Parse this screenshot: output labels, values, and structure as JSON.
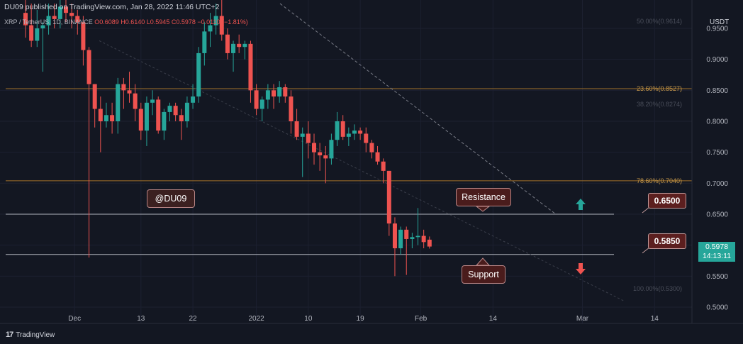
{
  "header": {
    "published": "DU09 published on TradingView.com, Jan 28, 2022 11:46 UTC+2",
    "symbol": "XRP / TetherUS, 1D, BINANCE",
    "ohlc": "O0.6089 H0.6140 L0.5945 C0.5978 −0.0110 (−1.81%)",
    "currency": "USDT"
  },
  "branding": {
    "logo_text": "TradingView"
  },
  "annotations": {
    "watermark": "@DU09",
    "resistance_label": "Resistance",
    "support_label": "Support",
    "resistance_price": "0.6500",
    "support_price": "0.5850"
  },
  "current_price": {
    "price": "0.5978",
    "countdown": "14:13:11",
    "color": "#26a69a"
  },
  "colors": {
    "up": "#26a69a",
    "down": "#ef5350",
    "fib_line": "#a0702a",
    "level_line": "#b2b5be",
    "background": "#131722"
  },
  "chart_data": {
    "type": "candlestick",
    "y_axis": {
      "ticks": [
        "0.9500",
        "0.9000",
        "0.8500",
        "0.8000",
        "0.7500",
        "0.7000",
        "0.6500",
        "0.6000",
        "0.5500",
        "0.5000"
      ],
      "ylim": [
        0.5,
        0.955
      ],
      "scale": "linear"
    },
    "x_axis": {
      "ticks": [
        "Dec",
        "13",
        "22",
        "2022",
        "10",
        "19",
        "Feb",
        "14",
        "Mar",
        "14"
      ]
    },
    "fib_levels": [
      {
        "label": "50.00%(0.9614)",
        "value": 0.9614,
        "faint": true
      },
      {
        "label": "23.60%(0.8527)",
        "value": 0.8527,
        "faint": false
      },
      {
        "label": "38.20%(0.8274)",
        "value": 0.8274,
        "faint": true
      },
      {
        "label": "78.60%(0.7040)",
        "value": 0.704,
        "faint": false
      },
      {
        "label": "100.00%(0.5300)",
        "value": 0.53,
        "faint": true
      }
    ],
    "horizontal_levels": [
      0.65,
      0.585
    ],
    "trendline": {
      "from": {
        "x": "Jan 5",
        "y": 0.99
      },
      "to": {
        "x": "Feb 21",
        "y": 0.65
      }
    },
    "candles": [
      {
        "date": "Nov 23",
        "open": 0.975,
        "high": 1.0,
        "low": 0.935,
        "close": 0.955
      },
      {
        "date": "Nov 24",
        "open": 0.955,
        "high": 0.99,
        "low": 0.92,
        "close": 0.93
      },
      {
        "date": "Nov 25",
        "open": 0.93,
        "high": 0.98,
        "low": 0.92,
        "close": 0.95
      },
      {
        "date": "Nov 26",
        "open": 0.95,
        "high": 0.96,
        "low": 0.88,
        "close": 0.955
      },
      {
        "date": "Nov 27",
        "open": 0.955,
        "high": 0.99,
        "low": 0.94,
        "close": 0.97
      },
      {
        "date": "Nov 28",
        "open": 0.97,
        "high": 0.99,
        "low": 0.95,
        "close": 0.965
      },
      {
        "date": "Nov 29",
        "open": 0.965,
        "high": 1.0,
        "low": 0.95,
        "close": 0.985
      },
      {
        "date": "Nov 30",
        "open": 0.985,
        "high": 1.0,
        "low": 0.96,
        "close": 0.975
      },
      {
        "date": "Dec 1",
        "open": 0.975,
        "high": 0.99,
        "low": 0.95,
        "close": 0.97
      },
      {
        "date": "Dec 2",
        "open": 0.97,
        "high": 0.98,
        "low": 0.94,
        "close": 0.96
      },
      {
        "date": "Dec 3",
        "open": 0.96,
        "high": 0.97,
        "low": 0.89,
        "close": 0.915
      },
      {
        "date": "Dec 4",
        "open": 0.915,
        "high": 0.92,
        "low": 0.58,
        "close": 0.86
      },
      {
        "date": "Dec 5",
        "open": 0.86,
        "high": 0.86,
        "low": 0.79,
        "close": 0.82
      },
      {
        "date": "Dec 6",
        "open": 0.82,
        "high": 0.84,
        "low": 0.75,
        "close": 0.8
      },
      {
        "date": "Dec 7",
        "open": 0.8,
        "high": 0.83,
        "low": 0.79,
        "close": 0.81
      },
      {
        "date": "Dec 8",
        "open": 0.81,
        "high": 0.83,
        "low": 0.78,
        "close": 0.8
      },
      {
        "date": "Dec 9",
        "open": 0.8,
        "high": 0.87,
        "low": 0.78,
        "close": 0.86
      },
      {
        "date": "Dec 10",
        "open": 0.86,
        "high": 0.87,
        "low": 0.82,
        "close": 0.85
      },
      {
        "date": "Dec 11",
        "open": 0.85,
        "high": 0.88,
        "low": 0.83,
        "close": 0.845
      },
      {
        "date": "Dec 12",
        "open": 0.845,
        "high": 0.86,
        "low": 0.8,
        "close": 0.82
      },
      {
        "date": "Dec 13",
        "open": 0.82,
        "high": 0.83,
        "low": 0.77,
        "close": 0.785
      },
      {
        "date": "Dec 14",
        "open": 0.785,
        "high": 0.84,
        "low": 0.76,
        "close": 0.83
      },
      {
        "date": "Dec 15",
        "open": 0.83,
        "high": 0.85,
        "low": 0.81,
        "close": 0.835
      },
      {
        "date": "Dec 16",
        "open": 0.835,
        "high": 0.84,
        "low": 0.78,
        "close": 0.785
      },
      {
        "date": "Dec 17",
        "open": 0.785,
        "high": 0.82,
        "low": 0.77,
        "close": 0.815
      },
      {
        "date": "Dec 18",
        "open": 0.815,
        "high": 0.83,
        "low": 0.8,
        "close": 0.825
      },
      {
        "date": "Dec 19",
        "open": 0.825,
        "high": 0.83,
        "low": 0.8,
        "close": 0.81
      },
      {
        "date": "Dec 20",
        "open": 0.81,
        "high": 0.82,
        "low": 0.77,
        "close": 0.8
      },
      {
        "date": "Dec 21",
        "open": 0.8,
        "high": 0.84,
        "low": 0.79,
        "close": 0.83
      },
      {
        "date": "Dec 22",
        "open": 0.83,
        "high": 0.86,
        "low": 0.82,
        "close": 0.84
      },
      {
        "date": "Dec 23",
        "open": 0.84,
        "high": 0.92,
        "low": 0.83,
        "close": 0.91
      },
      {
        "date": "Dec 24",
        "open": 0.91,
        "high": 0.96,
        "low": 0.89,
        "close": 0.945
      },
      {
        "date": "Dec 25",
        "open": 0.945,
        "high": 0.975,
        "low": 0.92,
        "close": 0.955
      },
      {
        "date": "Dec 26",
        "open": 0.955,
        "high": 0.99,
        "low": 0.94,
        "close": 0.97
      },
      {
        "date": "Dec 27",
        "open": 0.97,
        "high": 1.0,
        "low": 0.93,
        "close": 0.94
      },
      {
        "date": "Dec 28",
        "open": 0.94,
        "high": 0.95,
        "low": 0.9,
        "close": 0.91
      },
      {
        "date": "Dec 29",
        "open": 0.91,
        "high": 0.93,
        "low": 0.88,
        "close": 0.925
      },
      {
        "date": "Dec 30",
        "open": 0.925,
        "high": 0.94,
        "low": 0.91,
        "close": 0.92
      },
      {
        "date": "Dec 31",
        "open": 0.92,
        "high": 0.93,
        "low": 0.9,
        "close": 0.925
      },
      {
        "date": "Jan 1",
        "open": 0.925,
        "high": 0.93,
        "low": 0.83,
        "close": 0.85
      },
      {
        "date": "Jan 2",
        "open": 0.85,
        "high": 0.86,
        "low": 0.81,
        "close": 0.82
      },
      {
        "date": "Jan 3",
        "open": 0.82,
        "high": 0.84,
        "low": 0.8,
        "close": 0.835
      },
      {
        "date": "Jan 4",
        "open": 0.835,
        "high": 0.86,
        "low": 0.82,
        "close": 0.85
      },
      {
        "date": "Jan 5",
        "open": 0.85,
        "high": 0.86,
        "low": 0.82,
        "close": 0.84
      },
      {
        "date": "Jan 6",
        "open": 0.84,
        "high": 0.865,
        "low": 0.83,
        "close": 0.855
      },
      {
        "date": "Jan 7",
        "open": 0.855,
        "high": 0.86,
        "low": 0.83,
        "close": 0.84
      },
      {
        "date": "Jan 8",
        "open": 0.84,
        "high": 0.85,
        "low": 0.78,
        "close": 0.8
      },
      {
        "date": "Jan 9",
        "open": 0.8,
        "high": 0.82,
        "low": 0.77,
        "close": 0.775
      },
      {
        "date": "Jan 10",
        "open": 0.775,
        "high": 0.79,
        "low": 0.71,
        "close": 0.78
      },
      {
        "date": "Jan 11",
        "open": 0.78,
        "high": 0.8,
        "low": 0.74,
        "close": 0.765
      },
      {
        "date": "Jan 12",
        "open": 0.765,
        "high": 0.78,
        "low": 0.73,
        "close": 0.75
      },
      {
        "date": "Jan 13",
        "open": 0.75,
        "high": 0.765,
        "low": 0.72,
        "close": 0.745
      },
      {
        "date": "Jan 14",
        "open": 0.745,
        "high": 0.76,
        "low": 0.7,
        "close": 0.74
      },
      {
        "date": "Jan 15",
        "open": 0.74,
        "high": 0.78,
        "low": 0.73,
        "close": 0.77
      },
      {
        "date": "Jan 16",
        "open": 0.77,
        "high": 0.815,
        "low": 0.76,
        "close": 0.8
      },
      {
        "date": "Jan 17",
        "open": 0.8,
        "high": 0.81,
        "low": 0.77,
        "close": 0.775
      },
      {
        "date": "Jan 18",
        "open": 0.775,
        "high": 0.79,
        "low": 0.76,
        "close": 0.78
      },
      {
        "date": "Jan 19",
        "open": 0.78,
        "high": 0.795,
        "low": 0.77,
        "close": 0.785
      },
      {
        "date": "Jan 20",
        "open": 0.785,
        "high": 0.79,
        "low": 0.77,
        "close": 0.78
      },
      {
        "date": "Jan 21",
        "open": 0.78,
        "high": 0.79,
        "low": 0.75,
        "close": 0.765
      },
      {
        "date": "Jan 22",
        "open": 0.765,
        "high": 0.77,
        "low": 0.74,
        "close": 0.75
      },
      {
        "date": "Jan 23",
        "open": 0.75,
        "high": 0.76,
        "low": 0.73,
        "close": 0.735
      },
      {
        "date": "Jan 24",
        "open": 0.735,
        "high": 0.74,
        "low": 0.7,
        "close": 0.72
      },
      {
        "date": "Jan 25",
        "open": 0.72,
        "high": 0.72,
        "low": 0.615,
        "close": 0.635
      },
      {
        "date": "Jan 26",
        "open": 0.635,
        "high": 0.645,
        "low": 0.55,
        "close": 0.595
      },
      {
        "date": "Jan 27",
        "open": 0.595,
        "high": 0.63,
        "low": 0.585,
        "close": 0.625
      },
      {
        "date": "Jan 28",
        "open": 0.625,
        "high": 0.63,
        "low": 0.552,
        "close": 0.61
      },
      {
        "date": "Jan 29",
        "open": 0.61,
        "high": 0.62,
        "low": 0.595,
        "close": 0.613
      },
      {
        "date": "Jan 30",
        "open": 0.613,
        "high": 0.66,
        "low": 0.6,
        "close": 0.615
      },
      {
        "date": "Jan 31",
        "open": 0.615,
        "high": 0.625,
        "low": 0.595,
        "close": 0.605
      },
      {
        "date": "Feb 1",
        "open": 0.6089,
        "high": 0.614,
        "low": 0.5945,
        "close": 0.5978
      }
    ]
  }
}
